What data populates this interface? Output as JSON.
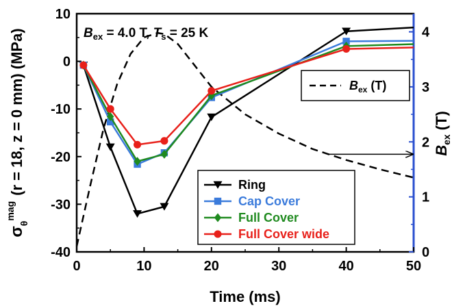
{
  "chart_data": {
    "type": "line",
    "xlabel": "Time (ms)",
    "ylabel_left": "σθmag (r = 18, z = 0 mm) (MPa)",
    "ylabel_left_parts": {
      "main": "σ",
      "sub": "θ",
      "sup": "mag",
      "rest": "(r = 18, z = 0 mm) (MPa)"
    },
    "ylabel_right": "Bex (T)",
    "ylabel_right_parts": {
      "main": "B",
      "sub": "ex",
      "rest": "(T)"
    },
    "xlim": [
      0,
      50
    ],
    "ylim_left": [
      -40,
      10
    ],
    "ylim_right": [
      0,
      4.33
    ],
    "x_ticks": [
      0,
      10,
      20,
      30,
      40,
      50
    ],
    "y_ticks_left": [
      -40,
      -30,
      -20,
      -10,
      0,
      10
    ],
    "y_ticks_right": [
      0,
      1,
      2,
      3,
      4
    ],
    "grid": false,
    "annotation": {
      "b": "B",
      "b_sub": "ex",
      "b_val": " = 4.0 T, ",
      "t": "T",
      "t_sub": "s",
      "t_val": " = 25 K"
    },
    "series": [
      {
        "name": "Ring",
        "color": "#000000",
        "marker": "triangle-down",
        "axis": "left",
        "x": [
          1,
          5,
          9,
          13,
          20,
          40,
          50
        ],
        "y": [
          -0.8,
          -18,
          -32,
          -30.5,
          -11.7,
          6.3,
          7.1
        ]
      },
      {
        "name": "Cap Cover",
        "color": "#3b7bdb",
        "marker": "square",
        "axis": "left",
        "x": [
          1,
          5,
          9,
          13,
          20,
          40,
          50
        ],
        "y": [
          -0.8,
          -12.7,
          -21.6,
          -19.2,
          -7.6,
          4.2,
          4.3
        ]
      },
      {
        "name": "Full Cover",
        "color": "#1f8a1f",
        "marker": "diamond",
        "axis": "left",
        "x": [
          1,
          5,
          9,
          13,
          20,
          40,
          50
        ],
        "y": [
          -0.8,
          -11.6,
          -21,
          -19.5,
          -7.2,
          3.2,
          3.6
        ]
      },
      {
        "name": "Full Cover wide",
        "color": "#e8201a",
        "marker": "circle",
        "axis": "left",
        "x": [
          1,
          5,
          9,
          13,
          20,
          40,
          50
        ],
        "y": [
          -0.8,
          -10,
          -17.5,
          -16.7,
          -6.2,
          2.6,
          2.9
        ]
      },
      {
        "name": "Bex (T)",
        "name_parts": {
          "main": "B",
          "sub": "ex",
          "rest": " (T)"
        },
        "color": "#000000",
        "dash": true,
        "axis": "right",
        "x": [
          0,
          2,
          4,
          6,
          8,
          10,
          12,
          13,
          15,
          20,
          25,
          30,
          35,
          40,
          45,
          50
        ],
        "y": [
          0.1,
          1.2,
          2.25,
          3.05,
          3.6,
          3.9,
          3.98,
          3.96,
          3.78,
          3.0,
          2.5,
          2.15,
          1.87,
          1.67,
          1.5,
          1.35
        ]
      }
    ],
    "arrows": [
      {
        "from_x": 37.5,
        "to_x": 50,
        "y": -19.5,
        "axis": "left"
      }
    ]
  }
}
